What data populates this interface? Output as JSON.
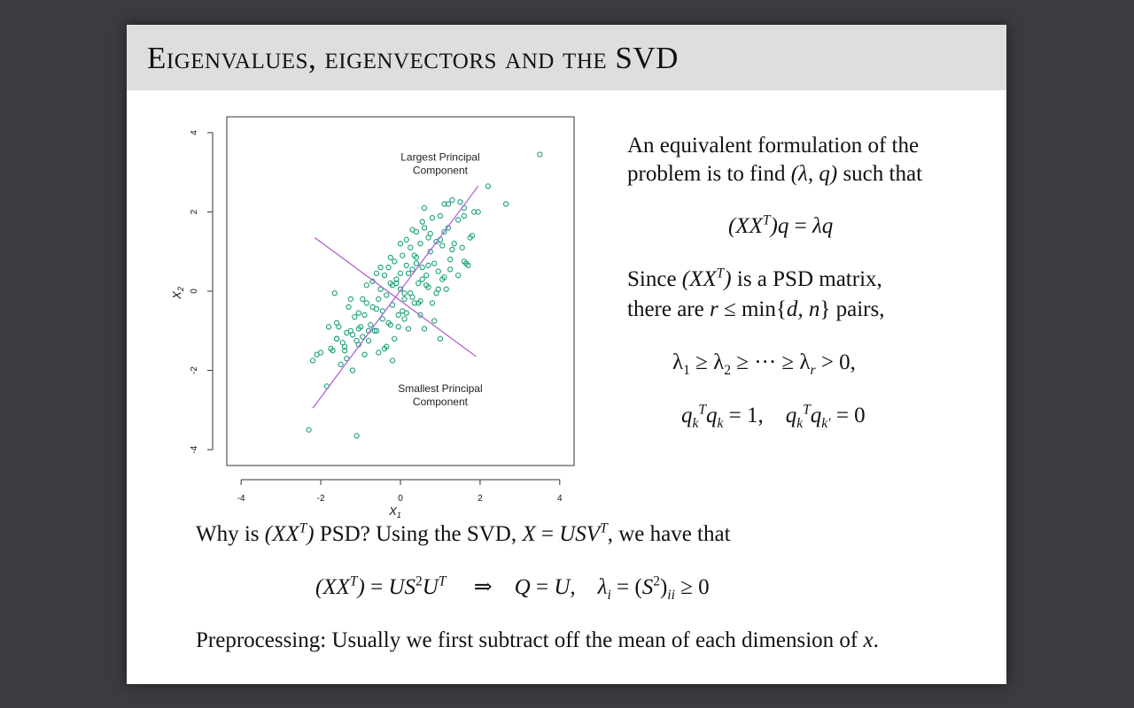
{
  "slide": {
    "title": "Eigenvalues, eigenvectors and the SVD",
    "right_text": {
      "line1": "An equivalent formulation of the",
      "line2_prefix": "problem is to find ",
      "line2_math": "(λ, q)",
      "line2_suffix": " such that",
      "eq1": "(XX^T)q = λq",
      "line3_prefix": "Since ",
      "line3_math": "(XX^T)",
      "line3_suffix": " is a PSD matrix,",
      "line4_prefix": "there are ",
      "line4_math": "r ≤ min{d, n}",
      "line4_suffix": " pairs,",
      "eq2": "λ₁ ≥ λ₂ ≥ ··· ≥ λᵣ > 0,",
      "eq3": "q_k^T q_k = 1,   q_k^T q_k′ = 0"
    },
    "bottom_text": {
      "line1_prefix": "Why is ",
      "line1_math1": "(XX^T)",
      "line1_mid": " PSD? Using the SVD, ",
      "line1_math2": "X = USV^T",
      "line1_suffix": ", we have that",
      "eq4": "(XX^T) = US²U^T  ⇒  Q = U,  λᵢ = (S²)ᵢᵢ ≥ 0",
      "line2_prefix": "Preprocessing: Usually we first subtract off the mean of each dimension of ",
      "line2_math": "x",
      "line2_suffix": "."
    }
  },
  "chart_data": {
    "type": "scatter",
    "title": "",
    "xlabel": "X1",
    "ylabel": "X2",
    "xlim": [
      -4,
      4
    ],
    "ylim": [
      -4,
      4
    ],
    "xticks": [
      -4,
      -2,
      0,
      2,
      4
    ],
    "yticks": [
      -4,
      -2,
      0,
      2,
      4
    ],
    "point_color": "#1a9e77",
    "line_color": "#b065d6",
    "annotations": [
      {
        "text": "Largest Principal",
        "text2": "Component"
      },
      {
        "text": "Smallest Principal",
        "text2": "Component"
      }
    ],
    "lines": [
      {
        "name": "Largest Principal Component",
        "x": [
          -2.2,
          1.95
        ],
        "y": [
          -2.95,
          2.65
        ]
      },
      {
        "name": "Smallest Principal Component",
        "x": [
          -2.15,
          1.9
        ],
        "y": [
          1.35,
          -1.65
        ]
      }
    ],
    "points": {
      "x": [
        -2.3,
        -1.1,
        3.5,
        2.65,
        2.2,
        1.95,
        1.6,
        1.1,
        0.6,
        1.2,
        1.5,
        1.85,
        1.45,
        1.6,
        1.3,
        1.75,
        -2.2,
        -2.1,
        -1.85,
        -1.7,
        -1.6,
        -1.55,
        -1.45,
        -1.35,
        -1.25,
        -1.15,
        -1.05,
        -1.05,
        -0.95,
        -0.85,
        -0.75,
        -0.7,
        -0.6,
        -0.55,
        -0.5,
        -0.45,
        -0.4,
        -0.35,
        -0.3,
        -0.25,
        -0.2,
        -0.15,
        -0.1,
        -0.05,
        0.0,
        0.05,
        0.1,
        0.15,
        0.2,
        0.25,
        0.3,
        0.35,
        0.4,
        0.45,
        0.5,
        0.55,
        0.6,
        0.65,
        0.7,
        0.75,
        0.8,
        0.85,
        0.9,
        0.95,
        1.0,
        1.05,
        1.1,
        1.15,
        1.2,
        1.25,
        1.35,
        1.45,
        1.55,
        1.65,
        1.8,
        -1.6,
        -1.4,
        -1.3,
        -1.2,
        -1.0,
        -0.9,
        -0.8,
        -0.65,
        -0.45,
        -0.35,
        -0.25,
        -0.15,
        0.05,
        0.2,
        0.35,
        0.5,
        0.65,
        0.8,
        0.95,
        1.1,
        1.25,
        0.3,
        0.4,
        0.55,
        0.15,
        -0.05,
        0.0,
        0.45,
        0.7,
        0.9,
        -1.5,
        -1.2,
        -0.9,
        -0.6,
        -0.3,
        -0.1,
        0.1,
        0.25,
        -0.4,
        -0.2,
        0.6,
        0.85,
        1.0,
        -1.8,
        -1.6,
        -1.35,
        -0.95,
        -0.7,
        -0.5,
        -0.25,
        0.0,
        0.3,
        0.55,
        0.75,
        1.0,
        1.3,
        -1.65,
        -1.25,
        -0.85,
        -0.6,
        -0.2,
        0.15,
        0.4,
        0.7,
        1.05,
        -0.8,
        -1.05,
        -0.55,
        0.1,
        0.5,
        -2.0,
        -1.75,
        -1.4,
        -1.1,
        1.6,
        1.7
      ],
      "y": [
        -3.5,
        -3.65,
        3.45,
        2.2,
        2.65,
        2.0,
        2.1,
        2.2,
        2.1,
        2.2,
        2.25,
        2.0,
        1.8,
        1.9,
        2.3,
        1.35,
        -1.75,
        -1.6,
        -2.4,
        -1.5,
        -1.2,
        -0.9,
        -1.3,
        -1.7,
        -1.0,
        -0.65,
        -1.35,
        -0.55,
        -1.15,
        -0.3,
        -0.85,
        -0.4,
        -1.0,
        -0.2,
        0.05,
        -0.5,
        0.4,
        -0.1,
        0.6,
        0.2,
        -0.35,
        0.75,
        0.3,
        -0.6,
        0.05,
        0.9,
        -0.2,
        1.3,
        0.45,
        1.1,
        0.55,
        0.9,
        1.5,
        0.2,
        1.2,
        0.6,
        1.6,
        0.4,
        1.35,
        1.0,
        1.85,
        0.7,
        1.25,
        0.5,
        1.9,
        0.3,
        1.5,
        0.05,
        1.6,
        0.8,
        1.2,
        0.4,
        1.1,
        0.7,
        1.4,
        -0.8,
        -1.5,
        -0.4,
        -1.1,
        -0.9,
        -0.6,
        -1.25,
        -1.0,
        -0.7,
        -1.4,
        -0.85,
        -1.2,
        -0.5,
        -0.95,
        -0.3,
        -0.6,
        0.15,
        -0.3,
        0.05,
        0.35,
        0.55,
        -0.15,
        0.7,
        0.3,
        -0.55,
        -0.9,
        0.45,
        -0.3,
        0.1,
        -0.05,
        -1.85,
        -2.0,
        -1.6,
        -0.45,
        -0.8,
        0.2,
        -0.7,
        -0.05,
        -1.45,
        -1.75,
        -0.95,
        -0.75,
        -1.2,
        -0.9,
        -1.2,
        -1.05,
        -0.2,
        0.25,
        0.6,
        0.85,
        1.2,
        1.55,
        1.75,
        1.45,
        1.3,
        1.05,
        -0.05,
        -0.2,
        0.15,
        0.45,
        0.15,
        0.65,
        0.85,
        0.65,
        1.15,
        -1.0,
        -0.95,
        -1.55,
        -0.05,
        -0.25,
        -1.55,
        -1.45,
        -1.4,
        -1.25,
        0.75,
        0.65
      ]
    }
  }
}
